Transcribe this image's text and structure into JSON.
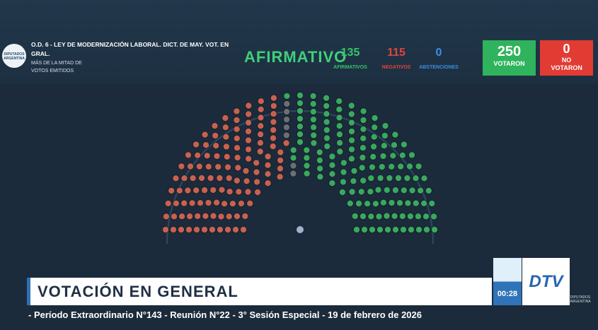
{
  "header": {
    "logo": {
      "line1": "DIPUTADOS",
      "line2": "ARGENTINA"
    },
    "title": "O.D. 6 - LEY DE MODERNIZACIÓN LABORAL. DICT. DE MAY. VOT. EN GRAL.",
    "subtitle": "MÁS DE LA MITAD DE VOTOS EMITIDOS",
    "result": "AFIRMATIVO",
    "tallies": [
      {
        "value": 135,
        "label": "AFIRMATIVOS",
        "color": "#35c46a"
      },
      {
        "value": 115,
        "label": "NEGATIVOS",
        "color": "#e0453d"
      },
      {
        "value": 0,
        "label": "ABSTENCIONES",
        "color": "#3d8fe0"
      }
    ],
    "voted": {
      "value": 250,
      "label": "VOTARON"
    },
    "not_voted": {
      "value": 0,
      "label": "NO VOTARON"
    }
  },
  "banner": {
    "title": "VOTACIÓN EN GENERAL",
    "clock": "00:28",
    "channel": "DTV",
    "ticker": "- Período Extraordinario N°143 - Reunión N°22 - 3° Sesión Especial - 19 de febrero de 2026",
    "corner_logo": {
      "line1": "DIPUTADOS",
      "line2": "ARGENTINA"
    }
  }
}
